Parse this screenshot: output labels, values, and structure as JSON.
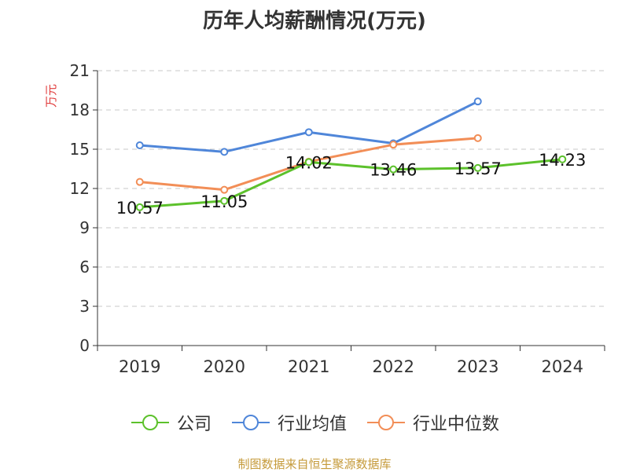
{
  "chart_data": {
    "type": "line",
    "title": "历年人均薪酬情况(万元)",
    "ylabel": "万元",
    "xlabel": "",
    "categories": [
      "2019",
      "2020",
      "2021",
      "2022",
      "2023",
      "2024"
    ],
    "ylim": [
      0,
      21
    ],
    "yticks": [
      0,
      3,
      6,
      9,
      12,
      15,
      18,
      21
    ],
    "grid": true,
    "legend_position": "bottom",
    "series": [
      {
        "name": "公司",
        "color": "#5cc12b",
        "values": [
          10.57,
          11.05,
          14.02,
          13.46,
          13.57,
          14.23
        ],
        "labels": [
          "10.57",
          "11.05",
          "14.02",
          "13.46",
          "13.57",
          "14.23"
        ]
      },
      {
        "name": "行业均值",
        "color": "#4f86d9",
        "values": [
          15.3,
          14.8,
          16.3,
          15.45,
          18.65,
          null
        ],
        "labels": null
      },
      {
        "name": "行业中位数",
        "color": "#f28e57",
        "values": [
          12.5,
          11.9,
          14.05,
          15.35,
          15.85,
          null
        ],
        "labels": null
      }
    ],
    "source": "制图数据来自恒生聚源数据库"
  }
}
